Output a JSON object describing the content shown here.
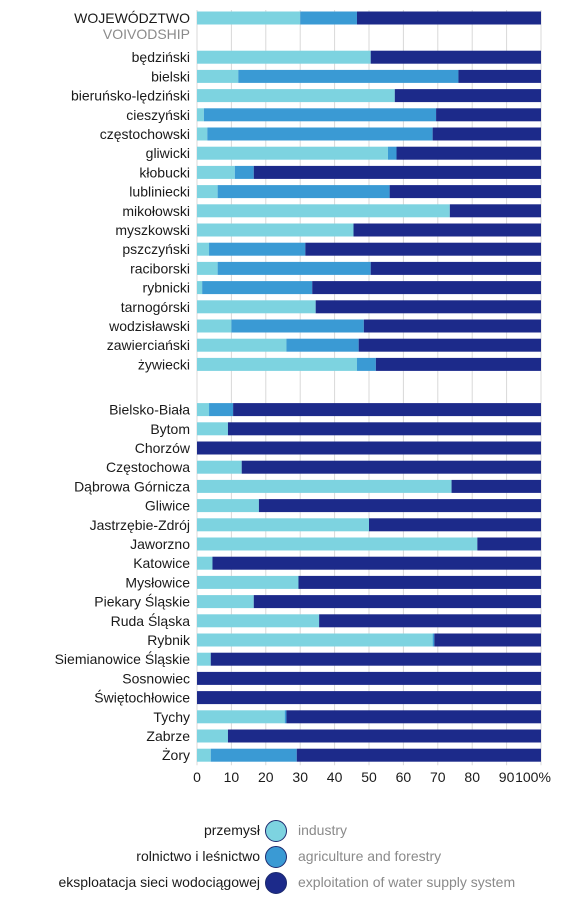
{
  "chart_data": {
    "type": "bar",
    "orientation": "horizontal",
    "stacked": true,
    "header": {
      "pl": "WOJEWÓDZTWO",
      "en": "VOIVODSHIP"
    },
    "categories": [
      "będziński",
      "bielski",
      "bieruńsko-lędziński",
      "cieszyński",
      "częstochowski",
      "gliwicki",
      "kłobucki",
      "lubliniecki",
      "mikołowski",
      "myszkowski",
      "pszczyński",
      "raciborski",
      "rybnicki",
      "tarnogórski",
      "wodzisławski",
      "zawierciański",
      "żywiecki",
      "Bielsko-Biała",
      "Bytom",
      "Chorzów",
      "Częstochowa",
      "Dąbrowa Górnicza",
      "Gliwice",
      "Jastrzębie-Zdrój",
      "Jaworzno",
      "Katowice",
      "Mysłowice",
      "Piekary Śląskie",
      "Ruda Śląska",
      "Rybnik",
      "Siemianowice Śląskie",
      "Sosnowiec",
      "Świętochłowice",
      "Tychy",
      "Zabrze",
      "Żory"
    ],
    "header_values": [
      30,
      16.5,
      53.5
    ],
    "series": [
      {
        "name": "industry",
        "name_pl": "przemysł",
        "color": "#7dd3e0",
        "values": [
          50.5,
          12,
          57.5,
          2,
          3,
          55.5,
          11,
          6,
          73.5,
          45.5,
          3.5,
          6,
          1.5,
          34.5,
          10,
          26,
          46.5,
          3.5,
          9,
          0,
          13,
          74,
          18,
          50,
          81.5,
          4.5,
          29.5,
          16.5,
          35.5,
          68.5,
          4,
          0,
          0,
          25.5,
          9,
          4
        ]
      },
      {
        "name": "agriculture and forestry",
        "name_pl": "rolnictwo i leśnictwo",
        "color": "#3a9ad4",
        "values": [
          0,
          64,
          0,
          67.5,
          65.5,
          2.5,
          5.5,
          50,
          0,
          0,
          28,
          44.5,
          32,
          0,
          38.5,
          21,
          5.5,
          7,
          0,
          0,
          0,
          0,
          0,
          0,
          0,
          0,
          0,
          0,
          0,
          0.5,
          0,
          0,
          0,
          0.5,
          0,
          25
        ]
      },
      {
        "name": "exploitation of water supply system",
        "name_pl": "eksploatacja sieci wodociągowej",
        "color": "#1c2a8a",
        "values": [
          49.5,
          24,
          42.5,
          30.5,
          31.5,
          42,
          83.5,
          44,
          26.5,
          54.5,
          68.5,
          49.5,
          66.5,
          65.5,
          51.5,
          53,
          48,
          89.5,
          91,
          100,
          87,
          26,
          82,
          50,
          18.5,
          95.5,
          70.5,
          83.5,
          64.5,
          31,
          96,
          100,
          100,
          74,
          91,
          71
        ]
      }
    ],
    "x_ticks": [
      "0",
      "10",
      "20",
      "30",
      "40",
      "50",
      "60",
      "70",
      "80",
      "90",
      "100%"
    ],
    "xlim": [
      0,
      100
    ],
    "grid": true,
    "legend_position": "bottom"
  }
}
